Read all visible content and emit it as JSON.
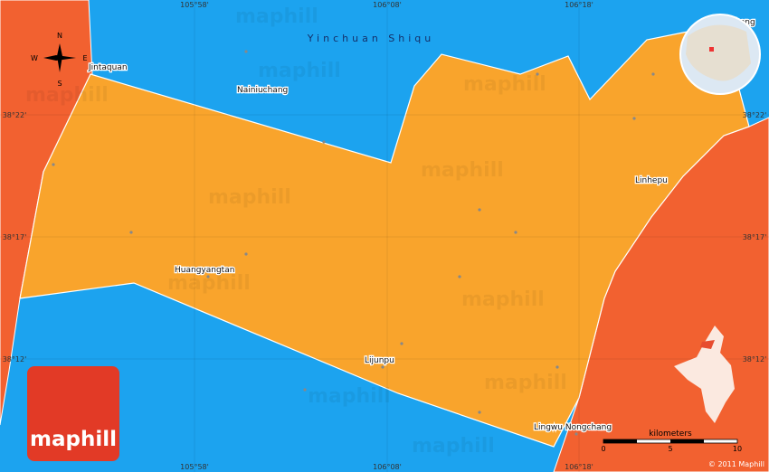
{
  "map": {
    "region": "Yinchuan Shiqu",
    "top_coords": [
      "105°58'",
      "106°08'",
      "106°18'"
    ],
    "bottom_coords": [
      "105°58'",
      "106°08'",
      "106°18'"
    ],
    "left_coords": [
      "38°22'",
      "38°17'",
      "38°12'"
    ],
    "right_coords": [
      "38°22'",
      "38°17'",
      "38°12'"
    ],
    "places": [
      "Jintaquan",
      "Nainiuchang",
      "Linhepu",
      "Huangyangtan",
      "Lijunpu",
      "Lingwu Nongchang",
      "heng"
    ],
    "compass": {
      "n": "N",
      "s": "S",
      "e": "E",
      "w": "W"
    },
    "watermark": "maphill",
    "logo": "maphill",
    "scale": {
      "title": "kilometers",
      "ticks": [
        "0",
        "5",
        "10"
      ]
    },
    "copyright": "© 2011 Maphill"
  }
}
